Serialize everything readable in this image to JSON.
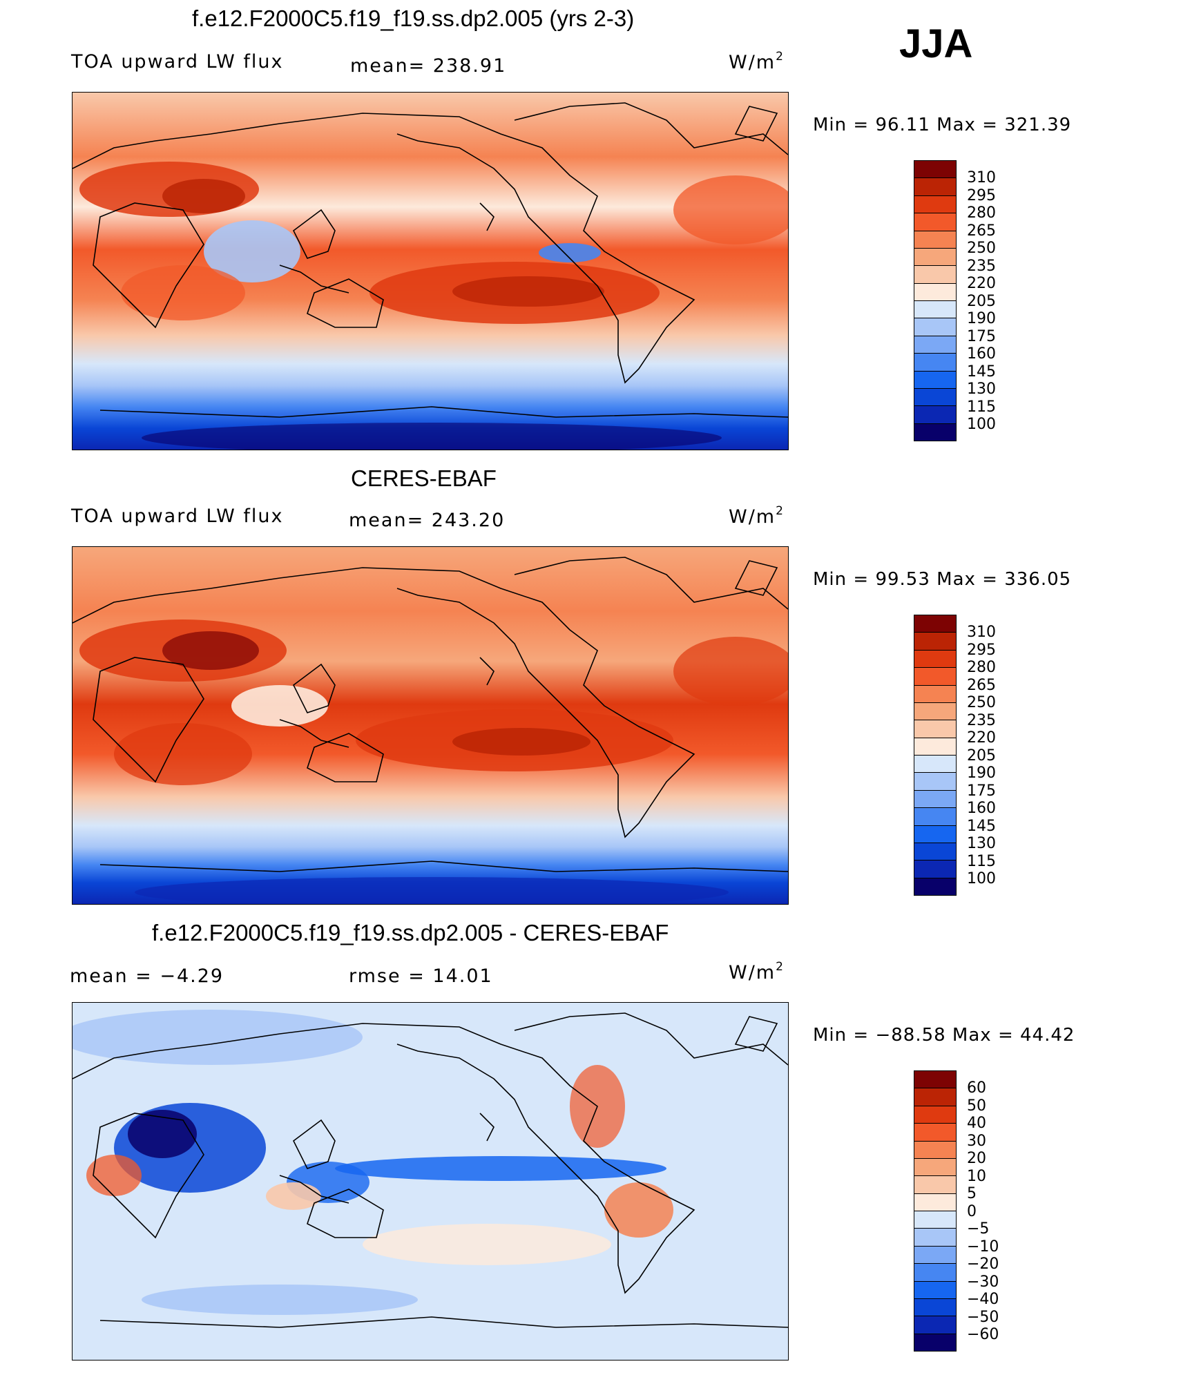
{
  "season": "JJA",
  "colors": {
    "abs_scale": [
      "#08006a",
      "#0b27b3",
      "#0a46d6",
      "#1666f0",
      "#4686f2",
      "#7ba8f5",
      "#a8c6f7",
      "#d7e7fa",
      "#fdeadc",
      "#f9c8aa",
      "#f6a77b",
      "#f58352",
      "#f2592a",
      "#df3a10",
      "#bb2405",
      "#7d0303"
    ],
    "diff_scale": [
      "#08006a",
      "#0b27b3",
      "#0a46d6",
      "#1666f0",
      "#4686f2",
      "#7ba8f5",
      "#a8c6f7",
      "#d7e7fa",
      "#fdeadc",
      "#f9c8aa",
      "#f6a77b",
      "#f58352",
      "#f2592a",
      "#df3a10",
      "#bb2405",
      "#7d0303"
    ]
  },
  "panels": [
    {
      "title": "f.e12.F2000C5.f19_f19.ss.dp2.005 (yrs 2-3)",
      "left_label": "TOA upward LW flux",
      "center_label": "mean=  238.91",
      "units": "W/m",
      "units_exp": "2",
      "minmax": "Min  =    96.11  Max  =  321.39",
      "colorbar_labels": [
        "310",
        "295",
        "280",
        "265",
        "250",
        "235",
        "220",
        "205",
        "190",
        "175",
        "160",
        "145",
        "130",
        "115",
        "100"
      ]
    },
    {
      "title": "CERES-EBAF",
      "left_label": "TOA upward LW flux",
      "center_label": "mean=  243.20",
      "units": "W/m",
      "units_exp": "2",
      "minmax": "Min  =    99.53  Max  =  336.05",
      "colorbar_labels": [
        "310",
        "295",
        "280",
        "265",
        "250",
        "235",
        "220",
        "205",
        "190",
        "175",
        "160",
        "145",
        "130",
        "115",
        "100"
      ]
    },
    {
      "title": "f.e12.F2000C5.f19_f19.ss.dp2.005 - CERES-EBAF",
      "left_label": "mean  =    −4.29",
      "center_label": "rmse  =    14.01",
      "units": "W/m",
      "units_exp": "2",
      "minmax": "Min  =  −88.58  Max  =    44.42",
      "colorbar_labels": [
        "60",
        "50",
        "40",
        "30",
        "20",
        "10",
        "5",
        "0",
        "−5",
        "−10",
        "−20",
        "−30",
        "−40",
        "−50",
        "−60"
      ]
    }
  ]
}
